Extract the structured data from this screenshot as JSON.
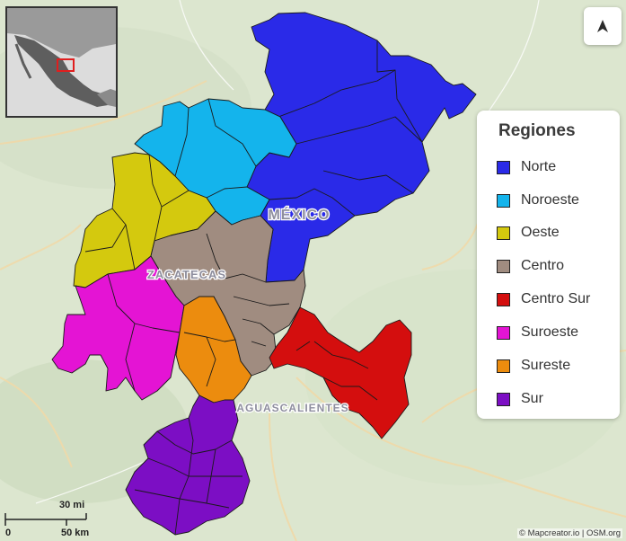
{
  "map": {
    "labels": {
      "state_mexico": "MÉXICO",
      "state_zacatecas": "ZACATECAS",
      "state_aguascalientes": "AGUASCALIENTES"
    }
  },
  "legend": {
    "title": "Regiones",
    "items": [
      {
        "label": "Norte",
        "color": "#2a2ae8"
      },
      {
        "label": "Noroeste",
        "color": "#14b4ec"
      },
      {
        "label": "Oeste",
        "color": "#d4c90e"
      },
      {
        "label": "Centro",
        "color": "#a08c80"
      },
      {
        "label": "Centro Sur",
        "color": "#d40e0e"
      },
      {
        "label": "Suroeste",
        "color": "#e414d4"
      },
      {
        "label": "Sureste",
        "color": "#ec8c0e"
      },
      {
        "label": "Sur",
        "color": "#7c0ec4"
      }
    ]
  },
  "scale": {
    "miles_label": "30 mi",
    "km_label": "50 km",
    "zero_label": "0"
  },
  "attribution": "© Mapcreator.io | OSM.org",
  "compass_icon": "north-arrow-icon"
}
